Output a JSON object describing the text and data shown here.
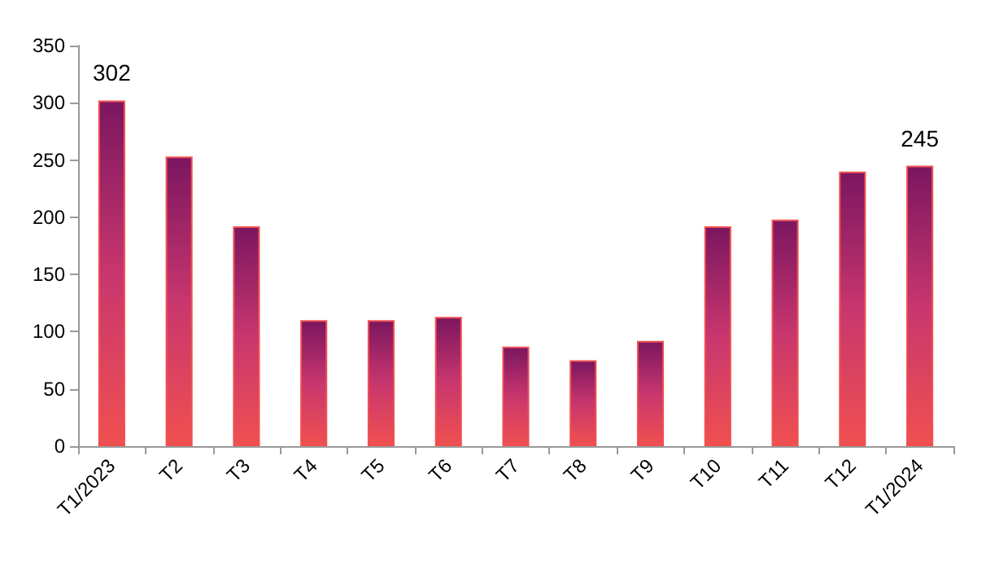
{
  "chart_data": {
    "type": "bar",
    "categories": [
      "T1/2023",
      "T2",
      "T3",
      "T4",
      "T5",
      "T6",
      "T7",
      "T8",
      "T9",
      "T10",
      "T11",
      "T12",
      "T1/2024"
    ],
    "series": [
      {
        "color": "#f05050",
        "values": [
          302,
          253,
          192,
          110,
          110,
          113,
          87,
          75,
          92,
          192,
          198,
          240,
          245
        ],
        "value_labels": [
          "302",
          null,
          null,
          null,
          null,
          null,
          null,
          null,
          null,
          null,
          null,
          null,
          "245"
        ]
      }
    ],
    "ylim": [
      0,
      350
    ],
    "yticks": [
      0,
      50,
      100,
      150,
      200,
      250,
      300,
      350
    ],
    "grid": false
  }
}
